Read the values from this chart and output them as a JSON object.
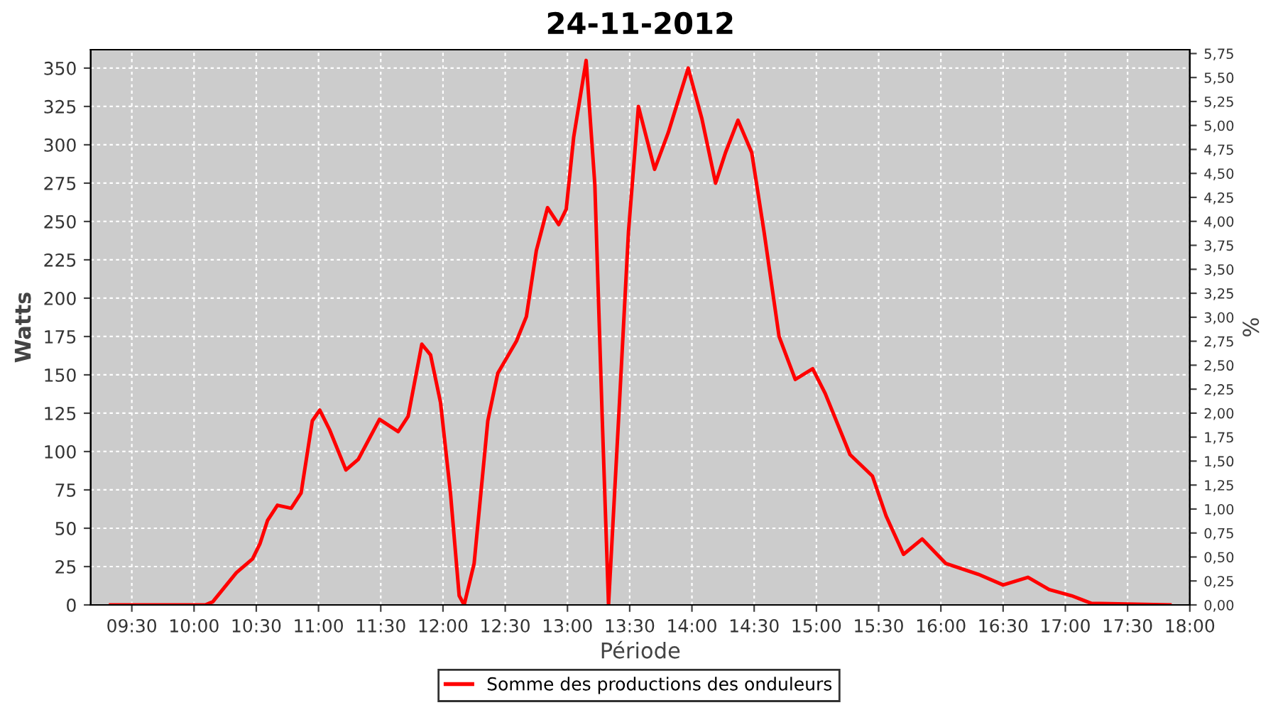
{
  "chart_data": {
    "type": "line",
    "title": "24-11-2012",
    "xlabel": "Période",
    "ylabel": "Watts",
    "y2label": "%",
    "x": [
      9.33,
      10.09,
      10.15,
      10.34,
      10.47,
      10.53,
      10.59,
      10.67,
      10.78,
      10.86,
      10.95,
      11.01,
      11.09,
      11.22,
      11.32,
      11.49,
      11.64,
      11.72,
      11.83,
      11.9,
      11.98,
      12.06,
      12.13,
      12.17,
      12.25,
      12.36,
      12.44,
      12.59,
      12.67,
      12.75,
      12.84,
      12.93,
      12.99,
      13.05,
      13.15,
      13.22,
      13.28,
      13.33,
      13.41,
      13.49,
      13.57,
      13.7,
      13.81,
      13.97,
      14.08,
      14.19,
      14.27,
      14.37,
      14.48,
      14.58,
      14.7,
      14.83,
      14.97,
      15.07,
      15.27,
      15.45,
      15.56,
      15.7,
      15.85,
      16.04,
      16.3,
      16.5,
      16.7,
      16.87,
      17.05,
      17.21,
      17.84
    ],
    "series": [
      {
        "name": "Somme des productions des onduleurs",
        "color": "#ff0000",
        "values": [
          0,
          0,
          2,
          21,
          30,
          40,
          55,
          65,
          63,
          73,
          120,
          127,
          114,
          88,
          95,
          121,
          113,
          123,
          170,
          163,
          132,
          73,
          6,
          0,
          27,
          120,
          151,
          172,
          188,
          231,
          259,
          248,
          258,
          305,
          355,
          274,
          120,
          0,
          120,
          243,
          325,
          284,
          308,
          350,
          317,
          275,
          295,
          316,
          295,
          243,
          175,
          147,
          154,
          138,
          98,
          84,
          58,
          33,
          43,
          27,
          20,
          13,
          18,
          10,
          6,
          1,
          0
        ]
      }
    ],
    "xlim": [
      9.17,
      18.0
    ],
    "xticks": [
      {
        "value": 9.5,
        "label": "09:30"
      },
      {
        "value": 10,
        "label": "10:00"
      },
      {
        "value": 10.5,
        "label": "10:30"
      },
      {
        "value": 11,
        "label": "11:00"
      },
      {
        "value": 11.5,
        "label": "11:30"
      },
      {
        "value": 12,
        "label": "12:00"
      },
      {
        "value": 12.5,
        "label": "12:30"
      },
      {
        "value": 13,
        "label": "13:00"
      },
      {
        "value": 13.5,
        "label": "13:30"
      },
      {
        "value": 14,
        "label": "14:00"
      },
      {
        "value": 14.5,
        "label": "14:30"
      },
      {
        "value": 15,
        "label": "15:00"
      },
      {
        "value": 15.5,
        "label": "15:30"
      },
      {
        "value": 16,
        "label": "16:00"
      },
      {
        "value": 16.5,
        "label": "16:30"
      },
      {
        "value": 17,
        "label": "17:00"
      },
      {
        "value": 17.5,
        "label": "17:30"
      },
      {
        "value": 18,
        "label": "18:00"
      }
    ],
    "ylim": [
      0,
      362
    ],
    "yticks": [
      0,
      25,
      50,
      75,
      100,
      125,
      150,
      175,
      200,
      225,
      250,
      275,
      300,
      325,
      350
    ],
    "y2lim": [
      0,
      5.79
    ],
    "y2ticks": [
      {
        "value": 0,
        "label": "0,00"
      },
      {
        "value": 0.25,
        "label": "0,25"
      },
      {
        "value": 0.5,
        "label": "0,50"
      },
      {
        "value": 0.75,
        "label": "0,75"
      },
      {
        "value": 1,
        "label": "1,00"
      },
      {
        "value": 1.25,
        "label": "1,25"
      },
      {
        "value": 1.5,
        "label": "1,50"
      },
      {
        "value": 1.75,
        "label": "1,75"
      },
      {
        "value": 2,
        "label": "2,00"
      },
      {
        "value": 2.25,
        "label": "2,25"
      },
      {
        "value": 2.5,
        "label": "2,50"
      },
      {
        "value": 2.75,
        "label": "2,75"
      },
      {
        "value": 3,
        "label": "3,00"
      },
      {
        "value": 3.25,
        "label": "3,25"
      },
      {
        "value": 3.5,
        "label": "3,50"
      },
      {
        "value": 3.75,
        "label": "3,75"
      },
      {
        "value": 4,
        "label": "4,00"
      },
      {
        "value": 4.25,
        "label": "4,25"
      },
      {
        "value": 4.5,
        "label": "4,50"
      },
      {
        "value": 4.75,
        "label": "4,75"
      },
      {
        "value": 5,
        "label": "5,00"
      },
      {
        "value": 5.25,
        "label": "5,25"
      },
      {
        "value": 5.5,
        "label": "5,50"
      },
      {
        "value": 5.75,
        "label": "5,75"
      }
    ],
    "grid": true,
    "legend": "bottom",
    "marker": "none",
    "line_style": "solid"
  }
}
